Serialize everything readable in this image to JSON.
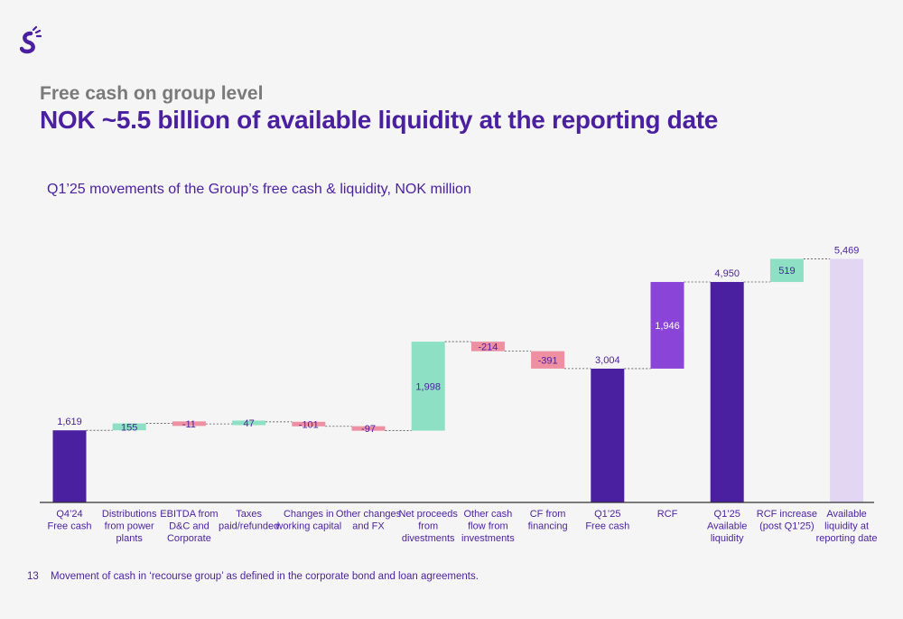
{
  "header": {
    "kicker": "Free cash on group level",
    "headline": "NOK ~5.5 billion of available liquidity at the reporting date",
    "subtitle": "Q1’25 movements of the Group’s free cash & liquidity, NOK million"
  },
  "footer": {
    "page_number": "13",
    "note": "Movement of cash in ‘recourse group’ as defined in the corporate bond and loan agreements."
  },
  "logo": {
    "icon": "s-brand-logo",
    "color": "#4a1fa0"
  },
  "colors": {
    "total": "#4a1fa0",
    "increase": "#8de0c3",
    "decrease": "#ee8fa2",
    "rcf": "#8a45d8",
    "available": "#e3d6f2",
    "text": "#4a1fa0",
    "axis": "#333333",
    "connector": "#555555"
  },
  "chart_data": {
    "type": "waterfall",
    "ylim": [
      0,
      5600
    ],
    "grid": false,
    "legend": "none",
    "bars": [
      {
        "label": [
          "Q4’24",
          "Free cash"
        ],
        "kind": "total",
        "value": 1619,
        "display": "1,619"
      },
      {
        "label": [
          "Distributions",
          "from power",
          "plants"
        ],
        "kind": "increase",
        "value": 155,
        "display": "155"
      },
      {
        "label": [
          "EBITDA from",
          "D&C and",
          "Corporate"
        ],
        "kind": "decrease",
        "value": -11,
        "display": "-11"
      },
      {
        "label": [
          "Taxes",
          "paid/refunded"
        ],
        "kind": "increase",
        "value": 47,
        "display": "47"
      },
      {
        "label": [
          "Changes in",
          "working capital"
        ],
        "kind": "decrease",
        "value": -101,
        "display": "-101"
      },
      {
        "label": [
          "Other changes",
          "and FX"
        ],
        "kind": "decrease",
        "value": -97,
        "display": "-97"
      },
      {
        "label": [
          "Net proceeds",
          "from",
          "divestments"
        ],
        "kind": "increase",
        "value": 1998,
        "display": "1,998"
      },
      {
        "label": [
          "Other cash",
          "flow from",
          "investments"
        ],
        "kind": "decrease",
        "value": -214,
        "display": "-214"
      },
      {
        "label": [
          "CF from",
          "financing"
        ],
        "kind": "decrease",
        "value": -391,
        "display": "-391"
      },
      {
        "label": [
          "Q1’25",
          "Free cash"
        ],
        "kind": "total",
        "value": 3004,
        "display": "3,004"
      },
      {
        "label": [
          "RCF"
        ],
        "kind": "rcf",
        "value": 1946,
        "display": "1,946"
      },
      {
        "label": [
          "Q1’25",
          "Available",
          "liquidity"
        ],
        "kind": "total",
        "value": 4950,
        "display": "4,950"
      },
      {
        "label": [
          "RCF increase",
          "(post Q1’25)"
        ],
        "kind": "increase",
        "value": 519,
        "display": "519"
      },
      {
        "label": [
          "Available",
          "liquidity at",
          "reporting date"
        ],
        "kind": "available",
        "value": 5469,
        "display": "5,469"
      }
    ]
  }
}
